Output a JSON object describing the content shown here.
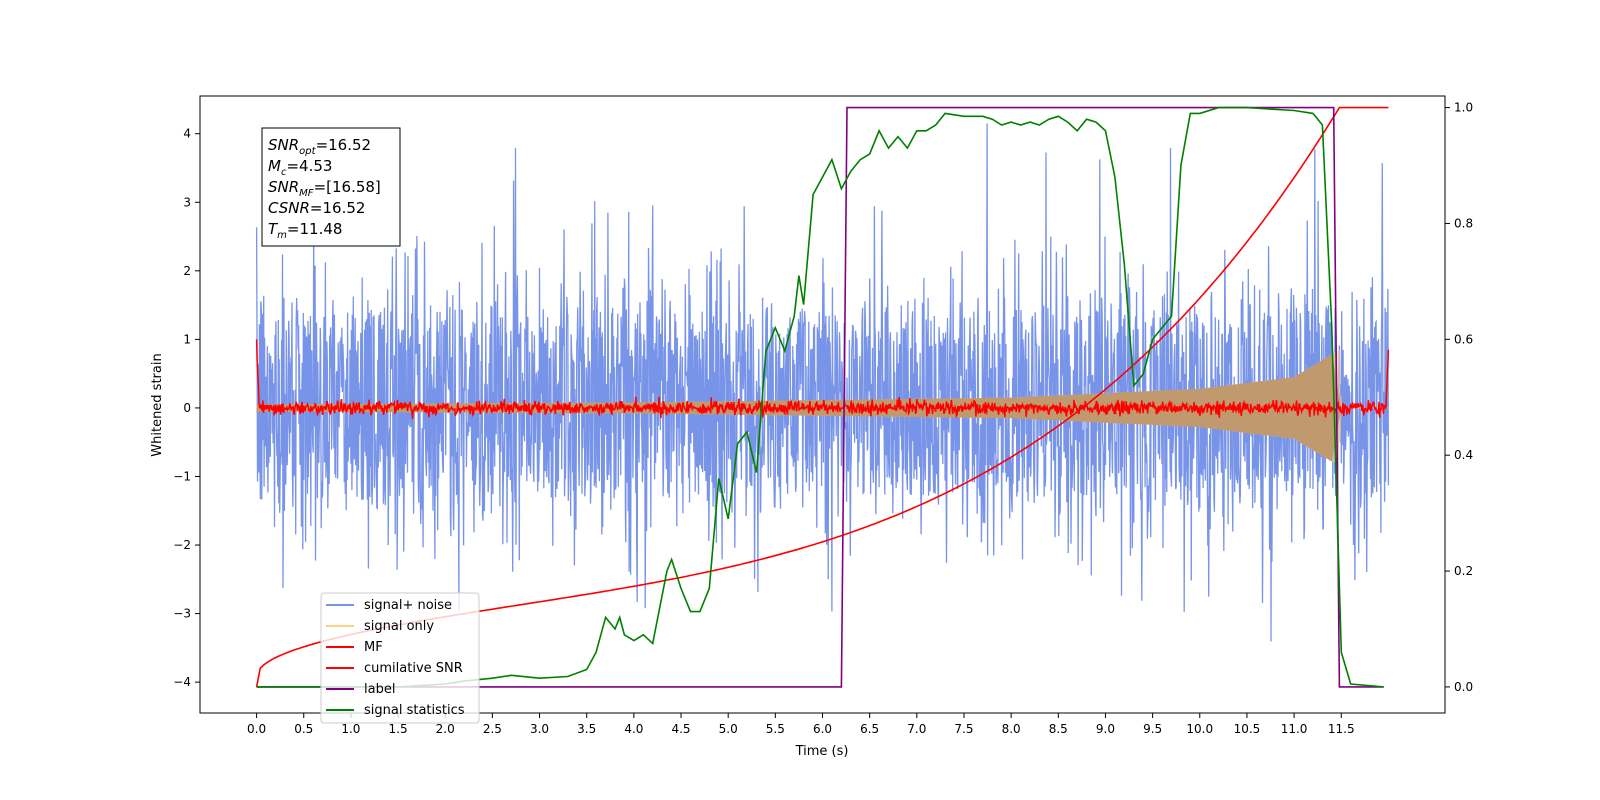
{
  "chart_data": {
    "type": "line",
    "title": "",
    "xlabel": "Time (s)",
    "ylabel": "Whitened strain",
    "xlim": [
      -0.6,
      12.6
    ],
    "ylim": [
      -4.45,
      4.55
    ],
    "y2lim": [
      -0.045,
      1.02
    ],
    "grid": false,
    "legend_position": "lower-left",
    "x_ticks": [
      "0.0",
      "0.5",
      "1.0",
      "1.5",
      "2.0",
      "2.5",
      "3.0",
      "3.5",
      "4.0",
      "4.5",
      "5.0",
      "5.5",
      "6.0",
      "6.5",
      "7.0",
      "7.5",
      "8.0",
      "8.5",
      "9.0",
      "9.5",
      "10.0",
      "10.5",
      "11.0",
      "11.5"
    ],
    "y_ticks": [
      {
        "value": -4,
        "label": "−4"
      },
      {
        "value": -3,
        "label": "−3"
      },
      {
        "value": -2,
        "label": "−2"
      },
      {
        "value": -1,
        "label": "−1"
      },
      {
        "value": 0,
        "label": "0"
      },
      {
        "value": 1,
        "label": "1"
      },
      {
        "value": 2,
        "label": "2"
      },
      {
        "value": 3,
        "label": "3"
      },
      {
        "value": 4,
        "label": "4"
      }
    ],
    "y2_ticks": [
      {
        "value": 0.0,
        "label": "0.0"
      },
      {
        "value": 0.2,
        "label": "0.2"
      },
      {
        "value": 0.4,
        "label": "0.4"
      },
      {
        "value": 0.6,
        "label": "0.6"
      },
      {
        "value": 0.8,
        "label": "0.8"
      },
      {
        "value": 1.0,
        "label": "1.0"
      }
    ],
    "annotation": {
      "lines": [
        {
          "base": "SNR",
          "sub": "opt",
          "rest": "=16.52"
        },
        {
          "base": "M",
          "sub": "c",
          "rest": "=4.53"
        },
        {
          "base": "SNR",
          "sub": "MF",
          "rest": "=[16.58]"
        },
        {
          "base": "CSNR",
          "sub": "",
          "rest": "=16.52"
        },
        {
          "base": "T",
          "sub": "m",
          "rest": "=11.48"
        }
      ]
    },
    "series": [
      {
        "name": "signal+ noise",
        "color": "#7894e8",
        "style": "noise",
        "x_range": [
          0.0,
          12.0
        ],
        "typical_amplitude": [
          -1.3,
          1.5
        ],
        "peak_amplitude": [
          -4.0,
          4.15
        ]
      },
      {
        "name": "signal only",
        "color": "#ffd080",
        "style": "chirp-envelope",
        "x_range": [
          0.0,
          12.0
        ],
        "envelope": [
          [
            0.0,
            0.05
          ],
          [
            4.0,
            0.08
          ],
          [
            8.0,
            0.15
          ],
          [
            10.0,
            0.28
          ],
          [
            11.0,
            0.45
          ],
          [
            11.48,
            0.85
          ],
          [
            11.5,
            0.0
          ],
          [
            12.0,
            0.0
          ]
        ]
      },
      {
        "name": "MF",
        "color": "#ff0000",
        "style": "noise-small",
        "x_range": [
          0.0,
          12.0
        ],
        "start_value": 1.0,
        "end_value": 0.85,
        "typical_amplitude": 0.1
      },
      {
        "name": "cumilative SNR",
        "color": "#ff0000",
        "axis": "right",
        "points": [
          [
            0.0,
            0.0
          ],
          [
            0.1,
            0.015
          ],
          [
            0.5,
            0.04
          ],
          [
            1.0,
            0.065
          ],
          [
            2.0,
            0.1
          ],
          [
            3.0,
            0.135
          ],
          [
            4.0,
            0.175
          ],
          [
            5.0,
            0.215
          ],
          [
            6.0,
            0.265
          ],
          [
            7.0,
            0.33
          ],
          [
            8.0,
            0.4
          ],
          [
            9.0,
            0.49
          ],
          [
            10.0,
            0.61
          ],
          [
            10.5,
            0.69
          ],
          [
            11.0,
            0.79
          ],
          [
            11.3,
            0.89
          ],
          [
            11.48,
            1.0
          ],
          [
            12.0,
            1.0
          ]
        ]
      },
      {
        "name": "label",
        "color": "#800080",
        "axis": "right",
        "points": [
          [
            0.0,
            0.0
          ],
          [
            6.2,
            0.0
          ],
          [
            6.26,
            1.0
          ],
          [
            11.42,
            1.0
          ],
          [
            11.48,
            0.0
          ],
          [
            11.95,
            0.0
          ]
        ]
      },
      {
        "name": "signal statistics",
        "color": "#008000",
        "axis": "right",
        "points": [
          [
            0.0,
            0.0
          ],
          [
            0.5,
            0.0
          ],
          [
            1.0,
            0.0
          ],
          [
            1.5,
            0.0
          ],
          [
            2.0,
            0.005
          ],
          [
            2.2,
            0.01
          ],
          [
            2.5,
            0.015
          ],
          [
            2.7,
            0.02
          ],
          [
            3.0,
            0.015
          ],
          [
            3.3,
            0.018
          ],
          [
            3.5,
            0.03
          ],
          [
            3.6,
            0.06
          ],
          [
            3.7,
            0.12
          ],
          [
            3.8,
            0.1
          ],
          [
            3.85,
            0.12
          ],
          [
            3.9,
            0.09
          ],
          [
            4.0,
            0.08
          ],
          [
            4.1,
            0.09
          ],
          [
            4.2,
            0.075
          ],
          [
            4.35,
            0.2
          ],
          [
            4.4,
            0.22
          ],
          [
            4.5,
            0.17
          ],
          [
            4.6,
            0.13
          ],
          [
            4.7,
            0.13
          ],
          [
            4.8,
            0.17
          ],
          [
            4.9,
            0.36
          ],
          [
            5.0,
            0.29
          ],
          [
            5.1,
            0.42
          ],
          [
            5.2,
            0.44
          ],
          [
            5.3,
            0.37
          ],
          [
            5.4,
            0.58
          ],
          [
            5.5,
            0.62
          ],
          [
            5.6,
            0.58
          ],
          [
            5.7,
            0.64
          ],
          [
            5.75,
            0.71
          ],
          [
            5.8,
            0.66
          ],
          [
            5.9,
            0.85
          ],
          [
            6.0,
            0.88
          ],
          [
            6.1,
            0.91
          ],
          [
            6.2,
            0.86
          ],
          [
            6.3,
            0.89
          ],
          [
            6.4,
            0.91
          ],
          [
            6.5,
            0.92
          ],
          [
            6.6,
            0.96
          ],
          [
            6.7,
            0.93
          ],
          [
            6.8,
            0.95
          ],
          [
            6.9,
            0.93
          ],
          [
            7.0,
            0.96
          ],
          [
            7.1,
            0.96
          ],
          [
            7.2,
            0.97
          ],
          [
            7.3,
            0.99
          ],
          [
            7.5,
            0.985
          ],
          [
            7.7,
            0.985
          ],
          [
            7.8,
            0.98
          ],
          [
            7.9,
            0.97
          ],
          [
            8.0,
            0.975
          ],
          [
            8.1,
            0.97
          ],
          [
            8.2,
            0.975
          ],
          [
            8.3,
            0.97
          ],
          [
            8.4,
            0.98
          ],
          [
            8.5,
            0.985
          ],
          [
            8.6,
            0.975
          ],
          [
            8.7,
            0.96
          ],
          [
            8.8,
            0.98
          ],
          [
            8.9,
            0.975
          ],
          [
            9.0,
            0.96
          ],
          [
            9.1,
            0.88
          ],
          [
            9.2,
            0.73
          ],
          [
            9.3,
            0.52
          ],
          [
            9.4,
            0.54
          ],
          [
            9.5,
            0.6
          ],
          [
            9.6,
            0.62
          ],
          [
            9.7,
            0.64
          ],
          [
            9.8,
            0.9
          ],
          [
            9.9,
            0.99
          ],
          [
            10.0,
            0.99
          ],
          [
            10.2,
            1.0
          ],
          [
            10.5,
            1.0
          ],
          [
            11.0,
            0.995
          ],
          [
            11.2,
            0.99
          ],
          [
            11.3,
            0.97
          ],
          [
            11.4,
            0.62
          ],
          [
            11.5,
            0.06
          ],
          [
            11.6,
            0.005
          ],
          [
            11.95,
            0.0
          ]
        ]
      }
    ]
  }
}
